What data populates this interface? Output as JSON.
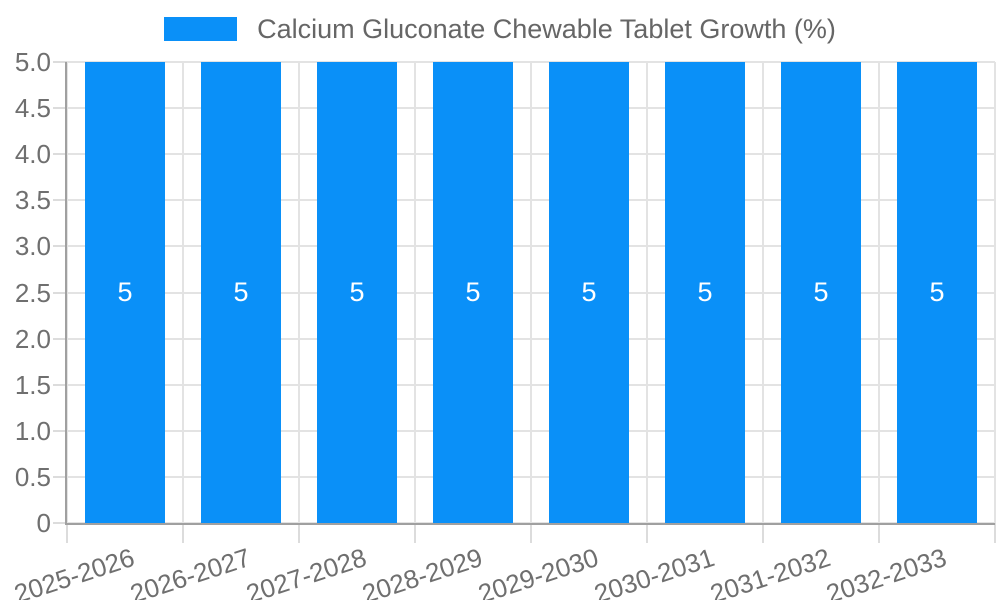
{
  "chart_data": {
    "type": "bar",
    "legend": "Calcium Gluconate Chewable Tablet Growth (%)",
    "legend_position": "top-center",
    "categories": [
      "2025-2026",
      "2026-2027",
      "2027-2028",
      "2028-2029",
      "2029-2030",
      "2030-2031",
      "2031-2032",
      "2032-2033"
    ],
    "values": [
      5,
      5,
      5,
      5,
      5,
      5,
      5,
      5
    ],
    "bar_value_labels": [
      "5",
      "5",
      "5",
      "5",
      "5",
      "5",
      "5",
      "5"
    ],
    "ylim": [
      0,
      5
    ],
    "ytick_labels": [
      "5.0",
      "4.5",
      "4.0",
      "3.5",
      "3.0",
      "2.5",
      "2.0",
      "1.5",
      "1.0",
      "0.5",
      "0"
    ],
    "grid": true,
    "x_label_rotation_deg": -18,
    "colors": {
      "bar_fill": "#0a90f8",
      "bar_value_text": "#ffffff",
      "legend_text": "#666666",
      "tick_text": "#6f6f6f",
      "grid_line": "#e3e3e3",
      "tick_mark": "#dcdcdc",
      "axis_line": "#a0a0a0",
      "background": "#ffffff"
    }
  }
}
